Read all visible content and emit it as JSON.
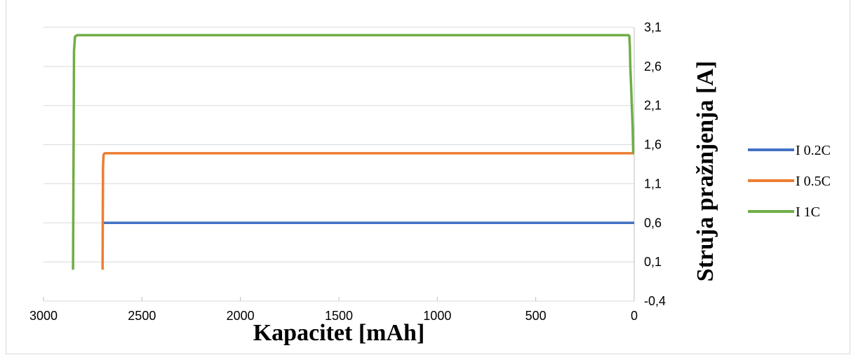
{
  "chart_data": {
    "type": "line",
    "title": "",
    "xlabel": "Kapacitet [mAh]",
    "ylabel": "Struja pražnjenja [A]",
    "x_reversed": true,
    "xlim": [
      0,
      3000
    ],
    "ylim": [
      -0.4,
      3.1
    ],
    "x_ticks": [
      3000,
      2500,
      2000,
      1500,
      1000,
      500,
      0
    ],
    "y_ticks": [
      -0.4,
      0.1,
      0.6,
      1.1,
      1.6,
      2.1,
      2.6,
      3.1
    ],
    "x_tick_labels": [
      "3000",
      "2500",
      "2000",
      "1500",
      "1000",
      "500",
      "0"
    ],
    "y_tick_labels": [
      "-0,4",
      "0,1",
      "0,6",
      "1,1",
      "1,6",
      "2,1",
      "2,6",
      "3,1"
    ],
    "grid": true,
    "legend_position": "right",
    "series": [
      {
        "name": "I 0.2C",
        "color": "#4472C4",
        "points": [
          [
            0,
            0.6
          ],
          [
            2700,
            0.6
          ]
        ]
      },
      {
        "name": "I 0.5C",
        "color": "#ED7D31",
        "points": [
          [
            0,
            1.49
          ],
          [
            10,
            1.49
          ],
          [
            2690,
            1.49
          ],
          [
            2695,
            1.47
          ],
          [
            2698,
            1.3
          ],
          [
            2700,
            0.0
          ]
        ]
      },
      {
        "name": "I 1C",
        "color": "#70AD47",
        "points": [
          [
            0,
            1.5
          ],
          [
            5,
            1.5
          ],
          [
            8,
            1.8
          ],
          [
            12,
            2.1
          ],
          [
            15,
            2.3
          ],
          [
            20,
            2.6
          ],
          [
            22,
            2.85
          ],
          [
            25,
            2.99
          ],
          [
            30,
            3.0
          ],
          [
            2830,
            3.0
          ],
          [
            2840,
            2.98
          ],
          [
            2845,
            2.8
          ],
          [
            2850,
            0.0
          ]
        ]
      }
    ]
  }
}
